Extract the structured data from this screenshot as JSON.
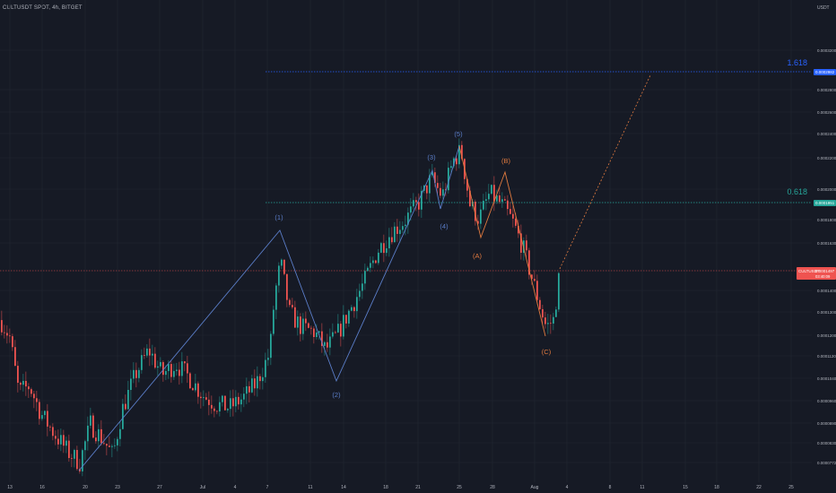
{
  "header": {
    "symbol_title": "CULTUSDT SPOT, 4h, BITGET",
    "currency": "USDT"
  },
  "colors": {
    "background": "#161a25",
    "grid": "#232733",
    "up": "#26a69a",
    "down": "#ef5350",
    "wave_blue": "#5b7ec9",
    "wave_orange": "#e07a3f",
    "fib_1618": "#2962ff",
    "fib_0618": "#26a69a",
    "current_price": "#ef5350",
    "axis_text": "#b2b5be"
  },
  "chart_data": {
    "type": "candlestick",
    "title": "CULTUSDT SPOT, 4h, BITGET",
    "x_tick_labels": [
      "13",
      "16",
      "20",
      "23",
      "27",
      "Jul",
      "4",
      "7",
      "11",
      "14",
      "18",
      "21",
      "25",
      "28",
      "Aug",
      "4",
      "8",
      "11",
      "15",
      "18",
      "22",
      "25"
    ],
    "y_tick_labels": [
      "0.0000772",
      "0.0000830",
      "0.0000890",
      "0.0000960",
      "0.0001040",
      "0.0001120",
      "0.0001200",
      "0.0001300",
      "0.0001400",
      "0.0001630",
      "0.0001800",
      "0.0002000",
      "0.0002200",
      "0.0002400",
      "0.0002600",
      "0.0002800",
      "0.0003200"
    ],
    "log_scale": true,
    "fib_levels": [
      {
        "label": "1.618",
        "price_label": "0.0002982"
      },
      {
        "label": "0.618",
        "price_label": "0.0001951"
      }
    ],
    "current_price": {
      "label": "CULTUSDT",
      "price": "0.0001497",
      "countdown": "03:40:09"
    },
    "wave_labels_blue": [
      "(1)",
      "(2)",
      "(3)",
      "(4)",
      "(5)"
    ],
    "wave_labels_orange": [
      "(A)",
      "(B)",
      "(C)"
    ],
    "price_path": [
      {
        "t": 0,
        "p": 0.000125
      },
      {
        "t": 10,
        "p": 0.000118
      },
      {
        "t": 20,
        "p": 9.8e-05
      },
      {
        "t": 32,
        "p": 0.0001
      },
      {
        "t": 45,
        "p": 9.1e-05
      },
      {
        "t": 60,
        "p": 8.5e-05
      },
      {
        "t": 75,
        "p": 8e-05
      },
      {
        "t": 88,
        "p": 7.72e-05
      },
      {
        "t": 100,
        "p": 8.8e-05
      },
      {
        "t": 115,
        "p": 8.3e-05
      },
      {
        "t": 125,
        "p": 7.9e-05
      },
      {
        "t": 135,
        "p": 9.2e-05
      },
      {
        "t": 150,
        "p": 0.000104
      },
      {
        "t": 165,
        "p": 0.000113
      },
      {
        "t": 180,
        "p": 0.000104
      },
      {
        "t": 195,
        "p": 0.000108
      },
      {
        "t": 210,
        "p": 0.000103
      },
      {
        "t": 225,
        "p": 9.7e-05
      },
      {
        "t": 240,
        "p": 9.4e-05
      },
      {
        "t": 255,
        "p": 9.3e-05
      },
      {
        "t": 270,
        "p": 9.6e-05
      },
      {
        "t": 285,
        "p": 0.000101
      },
      {
        "t": 300,
        "p": 0.000112
      },
      {
        "t": 305,
        "p": 0.000135
      },
      {
        "t": 312,
        "p": 0.000152
      },
      {
        "t": 322,
        "p": 0.000128
      },
      {
        "t": 335,
        "p": 0.000122
      },
      {
        "t": 350,
        "p": 0.00012
      },
      {
        "t": 362,
        "p": 0.000113
      },
      {
        "t": 375,
        "p": 0.000119
      },
      {
        "t": 390,
        "p": 0.00013
      },
      {
        "t": 405,
        "p": 0.000142
      },
      {
        "t": 420,
        "p": 0.000158
      },
      {
        "t": 435,
        "p": 0.000168
      },
      {
        "t": 450,
        "p": 0.000175
      },
      {
        "t": 465,
        "p": 0.000185
      },
      {
        "t": 480,
        "p": 0.000202
      },
      {
        "t": 492,
        "p": 0.00019
      },
      {
        "t": 505,
        "p": 0.000215
      },
      {
        "t": 513,
        "p": 0.000222
      },
      {
        "t": 523,
        "p": 0.000185
      },
      {
        "t": 533,
        "p": 0.000176
      },
      {
        "t": 545,
        "p": 0.000192
      },
      {
        "t": 558,
        "p": 0.000185
      },
      {
        "t": 570,
        "p": 0.000175
      },
      {
        "t": 582,
        "p": 0.00016
      },
      {
        "t": 595,
        "p": 0.00014
      },
      {
        "t": 608,
        "p": 0.000122
      },
      {
        "t": 616,
        "p": 0.000125
      },
      {
        "t": 624,
        "p": 0.0001497
      }
    ]
  }
}
